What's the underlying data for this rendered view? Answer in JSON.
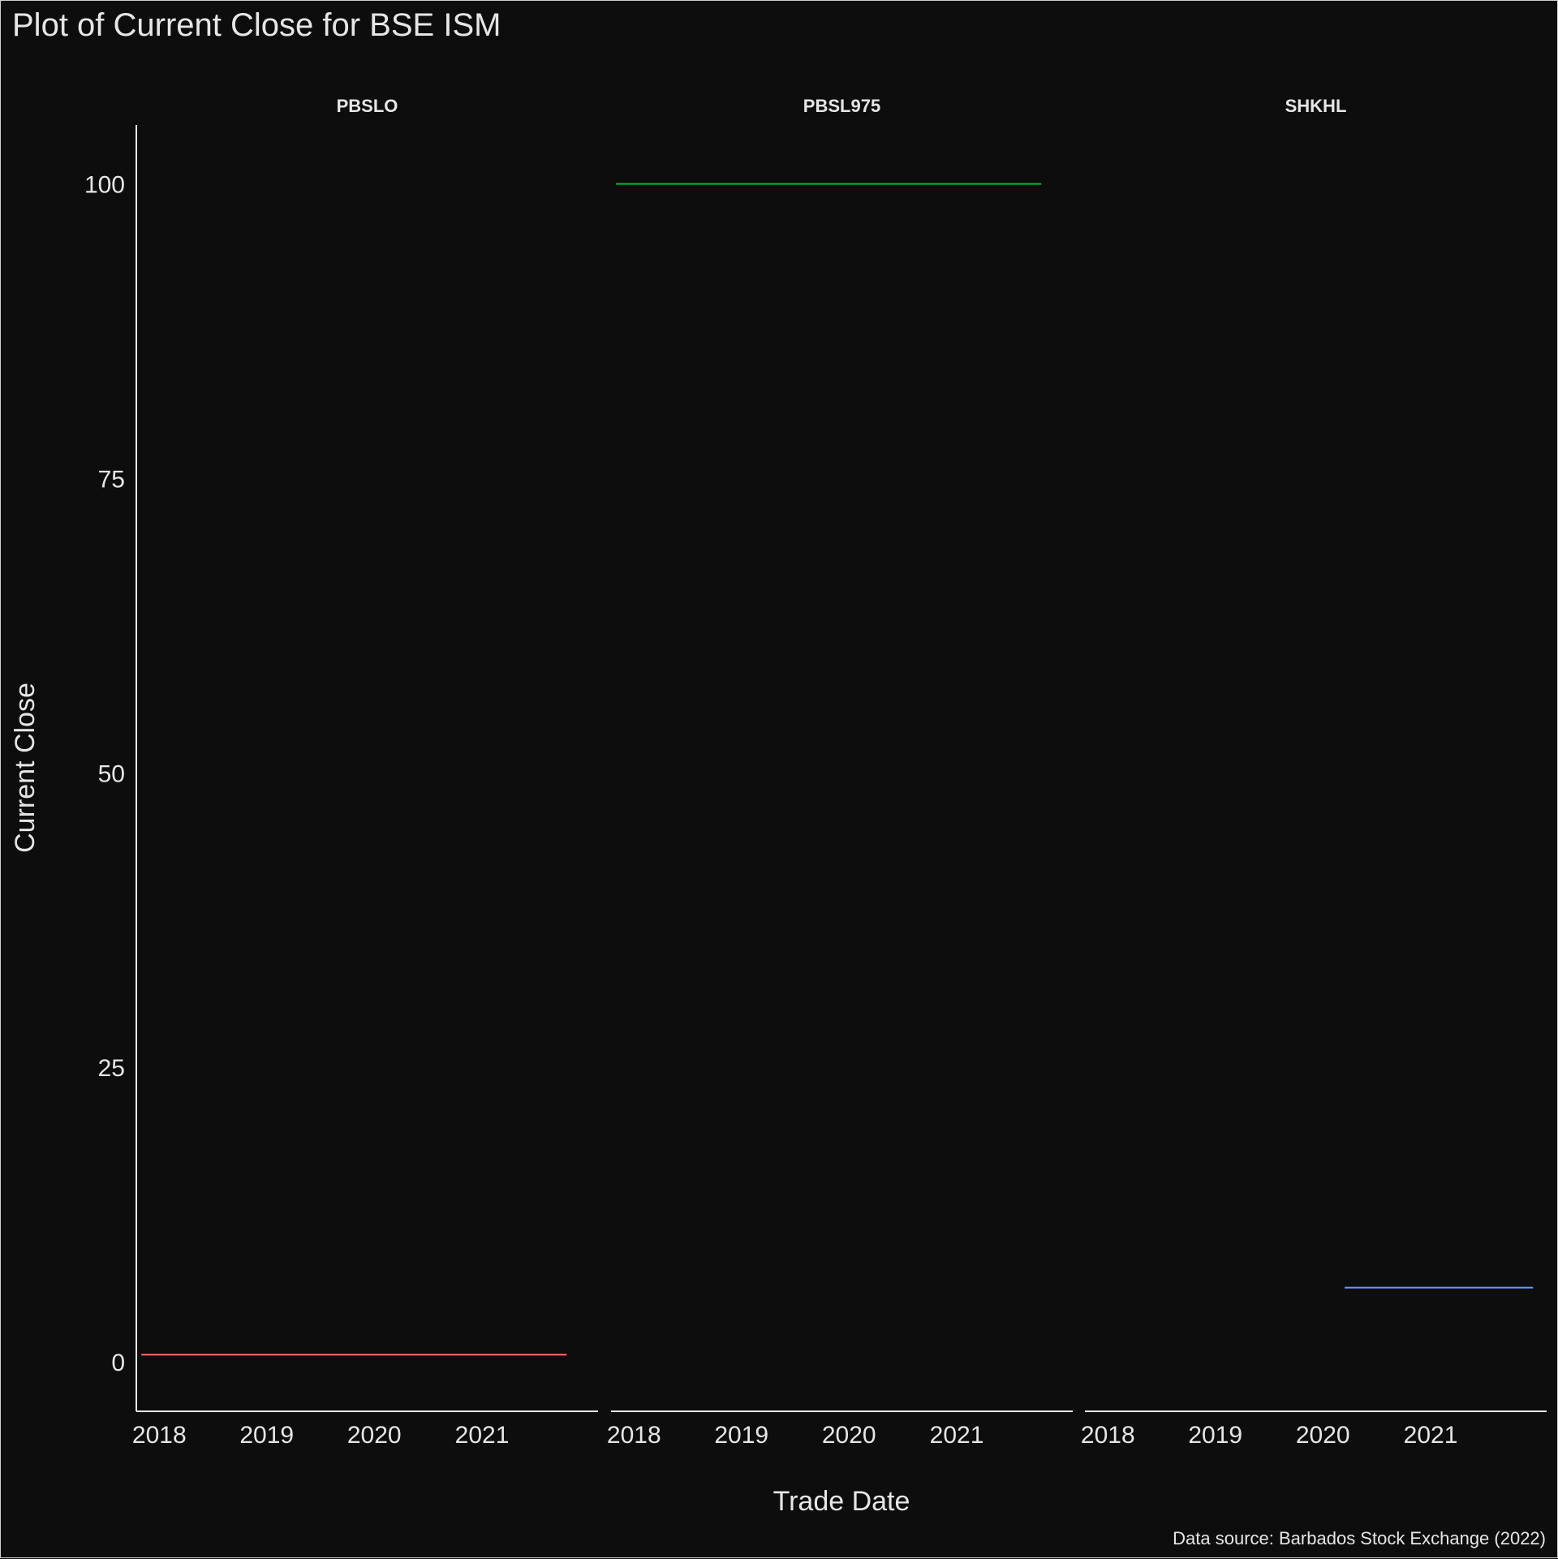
{
  "chart_data": {
    "type": "line",
    "title": "Plot of Current Close for BSE ISM",
    "xlabel": "Trade Date",
    "ylabel": "Current Close",
    "caption": "Data source: Barbados Stock Exchange (2022)",
    "ylim": [
      -4.2,
      105
    ],
    "y_ticks": [
      0,
      25,
      50,
      75,
      100
    ],
    "y_tick_labels": [
      "0",
      "25",
      "50",
      "75",
      "100"
    ],
    "xlim": [
      "2017-10-15",
      "2022-01-30"
    ],
    "x_ticks": [
      "2018-01-01",
      "2019-01-01",
      "2020-01-01",
      "2021-01-01"
    ],
    "x_tick_labels": [
      "2018",
      "2019",
      "2020",
      "2021"
    ],
    "grid": false,
    "legend": "none",
    "panels": [
      {
        "strip_label": "PBSLO",
        "color": "#f8766d",
        "series": [
          {
            "x": [
              "2017-11-01",
              "2021-10-15"
            ],
            "y": [
              0.6,
              0.6
            ]
          }
        ]
      },
      {
        "strip_label": "PBSL975",
        "color": "#00ba38",
        "series": [
          {
            "x": [
              "2017-11-01",
              "2021-10-15"
            ],
            "y": [
              100,
              100
            ]
          }
        ]
      },
      {
        "strip_label": "SHKHL",
        "color": "#619cff",
        "series": [
          {
            "x": [
              "2020-03-15",
              "2021-12-15"
            ],
            "y": [
              6.3,
              6.3
            ]
          }
        ]
      }
    ]
  }
}
